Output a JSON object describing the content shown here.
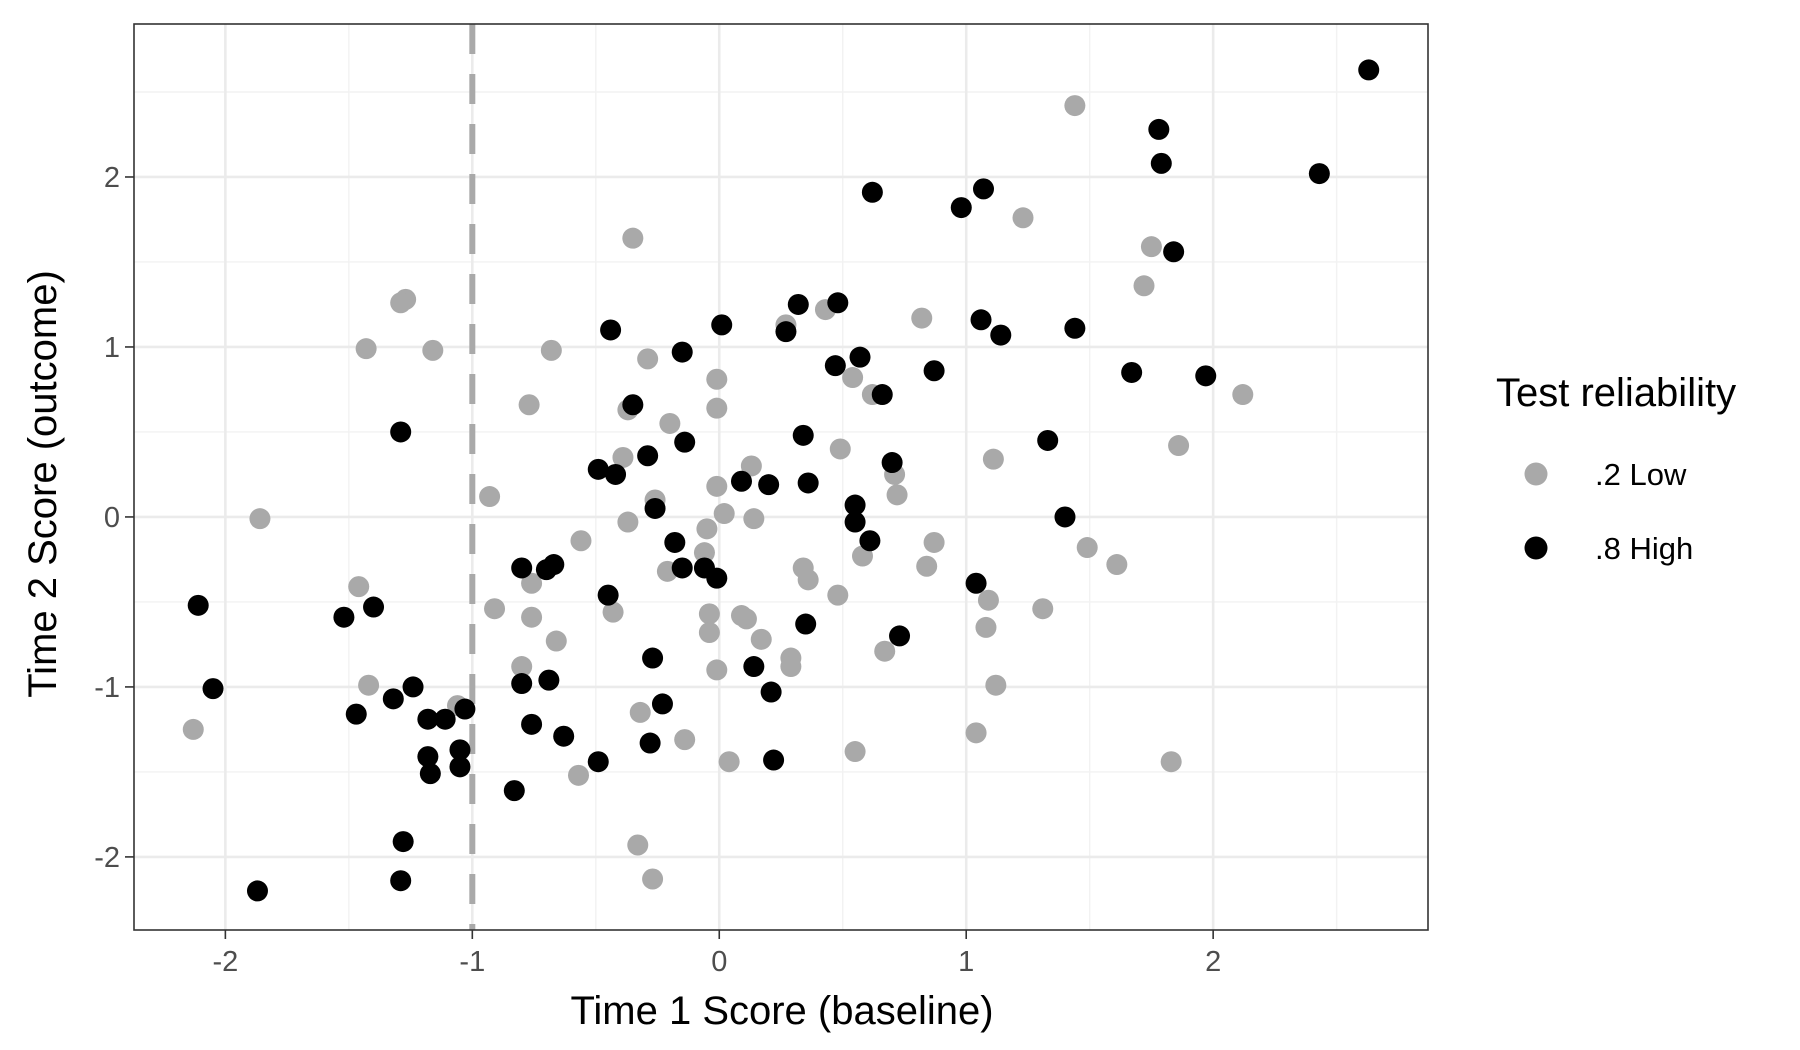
{
  "chart_data": {
    "type": "scatter",
    "title": "",
    "xlabel": "Time 1 Score (baseline)",
    "ylabel": "Time 2 Score (outcome)",
    "xlim": [
      -2.37,
      2.87
    ],
    "ylim": [
      -2.43,
      2.9
    ],
    "x_ticks": [
      -2,
      -1,
      0,
      1,
      2
    ],
    "y_ticks": [
      -2,
      -1,
      0,
      1,
      2
    ],
    "x_tick_labels": [
      "-2",
      "-1",
      "0",
      "1",
      "2"
    ],
    "y_tick_labels": [
      "-2",
      "-1",
      "0",
      "1",
      "2"
    ],
    "grid": true,
    "reference_line": {
      "orientation": "vertical",
      "x": -1,
      "style": "dashed",
      "color": "#a9a9a9"
    },
    "legend": {
      "title": "Test reliability",
      "placement": "right"
    },
    "series": [
      {
        "name": ".2 Low",
        "color": "#a9a9a9",
        "points": [
          [
            1.44,
            2.42
          ],
          [
            1.23,
            1.76
          ],
          [
            1.75,
            1.59
          ],
          [
            1.72,
            1.36
          ],
          [
            2.12,
            0.72
          ],
          [
            1.86,
            0.42
          ],
          [
            1.11,
            0.34
          ],
          [
            1.49,
            -0.18
          ],
          [
            1.61,
            -0.28
          ],
          [
            1.31,
            -0.54
          ],
          [
            1.83,
            -1.44
          ],
          [
            1.12,
            -0.99
          ],
          [
            1.09,
            -0.49
          ],
          [
            1.08,
            -0.65
          ],
          [
            1.04,
            -1.27
          ],
          [
            0.82,
            1.17
          ],
          [
            0.87,
            -0.15
          ],
          [
            0.84,
            -0.29
          ],
          [
            0.71,
            0.25
          ],
          [
            0.72,
            0.13
          ],
          [
            0.62,
            0.72
          ],
          [
            0.54,
            0.82
          ],
          [
            0.43,
            1.22
          ],
          [
            0.49,
            0.4
          ],
          [
            0.48,
            -0.46
          ],
          [
            0.58,
            -0.23
          ],
          [
            0.67,
            -0.79
          ],
          [
            0.55,
            -1.38
          ],
          [
            0.36,
            -0.37
          ],
          [
            0.34,
            -0.3
          ],
          [
            0.29,
            -0.83
          ],
          [
            0.29,
            -0.88
          ],
          [
            0.27,
            1.13
          ],
          [
            0.13,
            0.3
          ],
          [
            0.14,
            -0.01
          ],
          [
            0.17,
            -0.72
          ],
          [
            0.11,
            -0.6
          ],
          [
            0.09,
            -0.58
          ],
          [
            0.02,
            0.02
          ],
          [
            -0.01,
            0.81
          ],
          [
            -0.01,
            0.64
          ],
          [
            -0.01,
            0.18
          ],
          [
            -0.05,
            -0.07
          ],
          [
            -0.06,
            -0.21
          ],
          [
            -0.04,
            -0.57
          ],
          [
            -0.04,
            -0.68
          ],
          [
            -0.01,
            -0.9
          ],
          [
            0.04,
            -1.44
          ],
          [
            -0.35,
            1.64
          ],
          [
            -0.29,
            0.93
          ],
          [
            -0.37,
            0.63
          ],
          [
            -0.39,
            0.35
          ],
          [
            -0.2,
            0.55
          ],
          [
            -0.26,
            0.1
          ],
          [
            -0.37,
            -0.03
          ],
          [
            -0.21,
            -0.32
          ],
          [
            -0.56,
            -0.14
          ],
          [
            -0.43,
            -0.56
          ],
          [
            -0.32,
            -1.15
          ],
          [
            -0.14,
            -1.31
          ],
          [
            -0.33,
            -1.93
          ],
          [
            -0.27,
            -2.13
          ],
          [
            -0.57,
            -1.52
          ],
          [
            -0.68,
            0.98
          ],
          [
            -0.77,
            0.66
          ],
          [
            -0.66,
            -0.73
          ],
          [
            -0.76,
            -0.39
          ],
          [
            -0.76,
            -0.59
          ],
          [
            -0.91,
            -0.54
          ],
          [
            -0.8,
            -0.88
          ],
          [
            -0.93,
            0.12
          ],
          [
            -1.06,
            -1.11
          ],
          [
            -1.16,
            0.98
          ],
          [
            -1.27,
            1.28
          ],
          [
            -1.29,
            1.26
          ],
          [
            -1.43,
            0.99
          ],
          [
            -1.46,
            -0.41
          ],
          [
            -1.42,
            -0.99
          ],
          [
            -1.86,
            -0.01
          ],
          [
            -2.13,
            -1.25
          ]
        ]
      },
      {
        "name": ".8 High",
        "color": "#000000",
        "points": [
          [
            2.63,
            2.63
          ],
          [
            2.43,
            2.02
          ],
          [
            1.78,
            2.28
          ],
          [
            1.79,
            2.08
          ],
          [
            1.84,
            1.56
          ],
          [
            1.97,
            0.83
          ],
          [
            1.67,
            0.85
          ],
          [
            1.44,
            1.11
          ],
          [
            1.33,
            0.45
          ],
          [
            1.4,
            0.0
          ],
          [
            1.07,
            1.93
          ],
          [
            0.98,
            1.82
          ],
          [
            1.06,
            1.16
          ],
          [
            1.14,
            1.07
          ],
          [
            0.87,
            0.86
          ],
          [
            1.04,
            -0.39
          ],
          [
            0.62,
            1.91
          ],
          [
            0.66,
            0.72
          ],
          [
            0.57,
            0.94
          ],
          [
            0.47,
            0.89
          ],
          [
            0.48,
            1.26
          ],
          [
            0.7,
            0.32
          ],
          [
            0.55,
            0.07
          ],
          [
            0.55,
            -0.03
          ],
          [
            0.61,
            -0.14
          ],
          [
            0.73,
            -0.7
          ],
          [
            0.32,
            1.25
          ],
          [
            0.27,
            1.09
          ],
          [
            0.34,
            0.48
          ],
          [
            0.36,
            0.2
          ],
          [
            0.35,
            -0.63
          ],
          [
            0.2,
            0.19
          ],
          [
            0.09,
            0.21
          ],
          [
            0.21,
            -1.03
          ],
          [
            0.22,
            -1.43
          ],
          [
            0.14,
            -0.88
          ],
          [
            0.01,
            1.13
          ],
          [
            -0.15,
            0.97
          ],
          [
            -0.35,
            0.66
          ],
          [
            -0.44,
            1.1
          ],
          [
            -0.14,
            0.44
          ],
          [
            -0.29,
            0.36
          ],
          [
            -0.49,
            0.28
          ],
          [
            -0.42,
            0.25
          ],
          [
            -0.26,
            0.05
          ],
          [
            -0.18,
            -0.15
          ],
          [
            -0.15,
            -0.3
          ],
          [
            -0.06,
            -0.3
          ],
          [
            -0.01,
            -0.36
          ],
          [
            -0.45,
            -0.46
          ],
          [
            -0.27,
            -0.83
          ],
          [
            -0.23,
            -1.1
          ],
          [
            -0.28,
            -1.33
          ],
          [
            -0.49,
            -1.44
          ],
          [
            -0.67,
            -0.28
          ],
          [
            -0.7,
            -0.31
          ],
          [
            -0.8,
            -0.3
          ],
          [
            -0.69,
            -0.96
          ],
          [
            -0.8,
            -0.98
          ],
          [
            -0.76,
            -1.22
          ],
          [
            -0.63,
            -1.29
          ],
          [
            -0.83,
            -1.61
          ],
          [
            -1.03,
            -1.13
          ],
          [
            -1.05,
            -1.37
          ],
          [
            -1.05,
            -1.47
          ],
          [
            -1.11,
            -1.19
          ],
          [
            -1.18,
            -1.19
          ],
          [
            -1.17,
            -1.51
          ],
          [
            -1.18,
            -1.41
          ],
          [
            -1.24,
            -1.0
          ],
          [
            -1.32,
            -1.07
          ],
          [
            -1.29,
            0.5
          ],
          [
            -1.28,
            -1.91
          ],
          [
            -1.29,
            -2.14
          ],
          [
            -1.4,
            -0.53
          ],
          [
            -1.52,
            -0.59
          ],
          [
            -1.47,
            -1.16
          ],
          [
            -1.87,
            -2.2
          ],
          [
            -2.05,
            -1.01
          ],
          [
            -2.11,
            -0.52
          ]
        ]
      }
    ]
  }
}
